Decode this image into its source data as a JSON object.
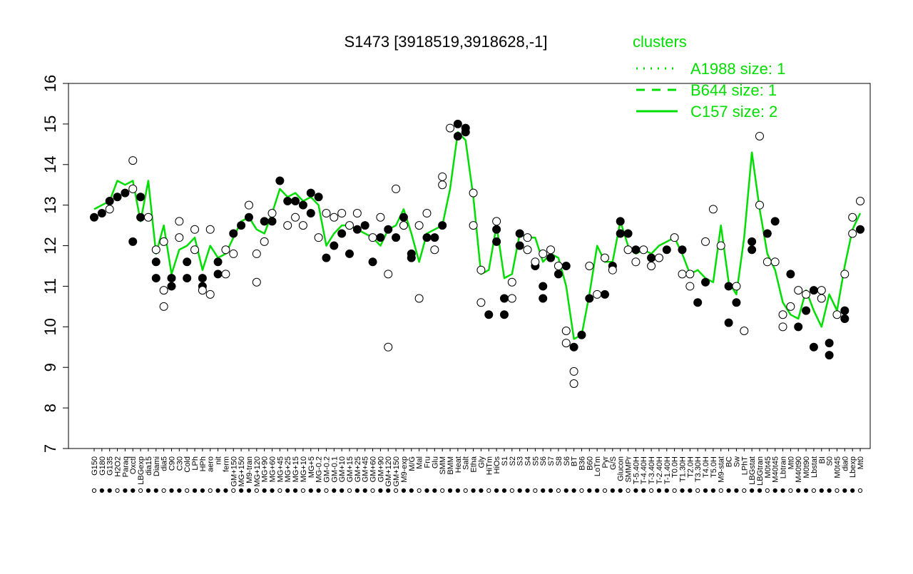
{
  "chart_data": {
    "type": "line",
    "title": "S1473 [3918519,3918628,-1]",
    "xlabel": "",
    "ylabel": "",
    "ylim": [
      7,
      16
    ],
    "y_ticks": [
      7,
      8,
      9,
      10,
      11,
      12,
      13,
      14,
      15,
      16
    ],
    "grid": false,
    "legend": {
      "title": "clusters",
      "placement": "top-right",
      "entries": [
        {
          "label": "A1988 size: 1",
          "style": "dotted"
        },
        {
          "label": "B644 size: 1",
          "style": "dashed"
        },
        {
          "label": "C157 size: 2",
          "style": "solid"
        }
      ]
    },
    "x_tick_labels": [
      "G150",
      "G180",
      "G135",
      "H2O2",
      "Paraq",
      "Oxctl",
      "LBGexp",
      "dia15",
      "Diami",
      "dia5",
      "C90",
      "C30",
      "Cold",
      "LPh",
      "HPh",
      "aero",
      "nit",
      "ferm",
      "GM+150",
      "MG+150",
      "M9-tran",
      "MG+120",
      "MG+90",
      "MG+60",
      "MG+45",
      "MG+25",
      "MG+15",
      "MG+10",
      "MG+5",
      "MG-0.2",
      "GM-0.2",
      "GM-0.1",
      "GM+10",
      "GM+15",
      "GM+25",
      "GM+45",
      "GM+60",
      "GM+90",
      "GM+120",
      "GM+150",
      "M9-exp",
      "M/G",
      "Mal",
      "Fru",
      "Glu",
      "SMM",
      "BMM",
      "Heat",
      "Salt",
      "Etha",
      "Gly",
      "HiTm",
      "HiOs",
      "S1",
      "S2",
      "S3",
      "S4",
      "S5",
      "S6",
      "S7",
      "S8",
      "S6",
      "BT",
      "B36",
      "B60",
      "LoTm",
      "Pyr",
      "G/S",
      "Glucon",
      "SMMPr",
      "T-5.40H",
      "T-4.40H",
      "T-3.40H",
      "T-2.40H",
      "T-1.40H",
      "T0.0H",
      "T1.30H",
      "T2.0H",
      "T3.30H",
      "T4.0H",
      "T5.0H",
      "M9-stat",
      "BC",
      "Sw",
      "LPhT",
      "LBGstat",
      "LBGtran",
      "M0t45",
      "M40t45",
      "Lbtran",
      "Mt0",
      "M40t90",
      "M0t90",
      "Lbstat",
      "BI",
      "S0",
      "M0t45",
      "dia0",
      "Lbexp",
      "Mt0"
    ],
    "series": [
      {
        "style": "solid",
        "color": "#00dd00",
        "x": [
          0,
          1,
          2,
          3,
          4,
          5,
          6,
          7,
          8,
          9,
          10,
          11,
          12,
          13,
          14,
          15,
          16,
          17,
          18,
          19,
          20,
          21,
          22,
          23,
          24,
          25,
          26,
          27,
          28,
          29,
          30,
          31,
          32,
          33,
          34,
          35,
          36,
          37,
          38,
          39,
          40,
          41,
          42,
          43,
          44,
          45,
          46,
          47,
          48,
          49,
          50,
          51,
          52,
          53,
          54,
          55,
          56,
          57,
          58,
          59,
          60,
          61,
          62,
          63,
          64,
          65,
          66,
          67,
          68,
          69,
          70,
          71,
          72,
          73,
          74,
          75,
          76,
          77,
          78,
          79,
          80,
          81,
          82,
          83,
          84,
          85,
          86,
          87,
          88,
          89,
          90,
          91,
          92,
          93,
          94,
          95,
          96,
          97,
          98,
          99
        ],
        "values": [
          12.9,
          13.0,
          13.1,
          13.6,
          13.5,
          13.6,
          12.6,
          13.6,
          11.8,
          12.5,
          11.3,
          11.9,
          12.0,
          12.2,
          11.4,
          12.0,
          11.7,
          11.8,
          12.2,
          12.6,
          12.7,
          12.4,
          12.3,
          12.8,
          13.4,
          13.2,
          13.3,
          13.1,
          13.2,
          13.0,
          12.0,
          12.3,
          12.5,
          12.5,
          12.4,
          12.3,
          12.2,
          12.0,
          12.4,
          12.5,
          12.9,
          12.3,
          11.6,
          12.3,
          12.4,
          12.5,
          13.4,
          14.8,
          14.6,
          13.2,
          11.3,
          11.4,
          12.5,
          11.2,
          11.3,
          12.3,
          12.2,
          12.2,
          11.6,
          11.8,
          11.7,
          11.0,
          9.7,
          9.8,
          10.8,
          12.0,
          11.6,
          11.6,
          12.6,
          12.0,
          11.8,
          11.9,
          11.8,
          12.0,
          12.1,
          12.2,
          11.8,
          11.3,
          11.4,
          11.2,
          11.1,
          12.5,
          11.1,
          10.8,
          12.2,
          14.3,
          12.9,
          11.8,
          11.4,
          10.6,
          10.3,
          10.2,
          10.9,
          10.4,
          10.0,
          10.8,
          10.4,
          11.5,
          12.4,
          12.8
        ]
      }
    ],
    "points": {
      "filled": [
        [
          0,
          12.7
        ],
        [
          1,
          12.8
        ],
        [
          2,
          13.1
        ],
        [
          3,
          13.2
        ],
        [
          4,
          13.3
        ],
        [
          5,
          12.1
        ],
        [
          6,
          12.7
        ],
        [
          6,
          13.2
        ],
        [
          8,
          11.6
        ],
        [
          8,
          11.2
        ],
        [
          10,
          11.2
        ],
        [
          10,
          11.0
        ],
        [
          12,
          11.6
        ],
        [
          12,
          11.2
        ],
        [
          14,
          11.2
        ],
        [
          14,
          11.0
        ],
        [
          16,
          11.3
        ],
        [
          16,
          11.6
        ],
        [
          18,
          12.3
        ],
        [
          19,
          12.5
        ],
        [
          20,
          12.7
        ],
        [
          22,
          12.6
        ],
        [
          23,
          12.6
        ],
        [
          24,
          13.6
        ],
        [
          25,
          13.1
        ],
        [
          26,
          13.1
        ],
        [
          27,
          13.0
        ],
        [
          28,
          12.8
        ],
        [
          28,
          13.3
        ],
        [
          29,
          13.2
        ],
        [
          30,
          11.7
        ],
        [
          31,
          12.0
        ],
        [
          32,
          12.3
        ],
        [
          33,
          11.8
        ],
        [
          34,
          12.4
        ],
        [
          35,
          12.5
        ],
        [
          36,
          11.6
        ],
        [
          37,
          12.2
        ],
        [
          38,
          12.4
        ],
        [
          39,
          12.2
        ],
        [
          40,
          12.7
        ],
        [
          41,
          11.7
        ],
        [
          41,
          11.8
        ],
        [
          43,
          12.2
        ],
        [
          44,
          12.2
        ],
        [
          45,
          12.5
        ],
        [
          47,
          14.7
        ],
        [
          47,
          15.0
        ],
        [
          48,
          14.8
        ],
        [
          48,
          14.9
        ],
        [
          51,
          10.3
        ],
        [
          52,
          12.1
        ],
        [
          52,
          12.4
        ],
        [
          53,
          10.7
        ],
        [
          53,
          10.3
        ],
        [
          55,
          12.0
        ],
        [
          55,
          12.3
        ],
        [
          57,
          11.5
        ],
        [
          58,
          11.0
        ],
        [
          58,
          10.7
        ],
        [
          59,
          11.7
        ],
        [
          60,
          11.3
        ],
        [
          61,
          11.5
        ],
        [
          62,
          9.5
        ],
        [
          63,
          9.8
        ],
        [
          64,
          10.7
        ],
        [
          66,
          10.8
        ],
        [
          67,
          11.5
        ],
        [
          68,
          12.6
        ],
        [
          68,
          12.3
        ],
        [
          69,
          12.3
        ],
        [
          70,
          11.9
        ],
        [
          72,
          11.7
        ],
        [
          74,
          11.9
        ],
        [
          76,
          11.9
        ],
        [
          78,
          10.6
        ],
        [
          79,
          11.1
        ],
        [
          82,
          11.0
        ],
        [
          82,
          10.1
        ],
        [
          83,
          10.6
        ],
        [
          85,
          11.9
        ],
        [
          85,
          12.1
        ],
        [
          87,
          12.3
        ],
        [
          88,
          12.6
        ],
        [
          90,
          11.3
        ],
        [
          91,
          10.0
        ],
        [
          92,
          10.4
        ],
        [
          93,
          9.5
        ],
        [
          93,
          10.9
        ],
        [
          95,
          9.6
        ],
        [
          95,
          9.3
        ],
        [
          97,
          10.4
        ],
        [
          97,
          10.2
        ],
        [
          99,
          12.4
        ]
      ],
      "open": [
        [
          2,
          12.9
        ],
        [
          5,
          14.1
        ],
        [
          5,
          13.4
        ],
        [
          7,
          12.7
        ],
        [
          8,
          11.9
        ],
        [
          9,
          12.1
        ],
        [
          9,
          10.9
        ],
        [
          9,
          10.5
        ],
        [
          11,
          12.6
        ],
        [
          11,
          12.2
        ],
        [
          13,
          12.4
        ],
        [
          13,
          11.9
        ],
        [
          14,
          10.9
        ],
        [
          15,
          10.8
        ],
        [
          15,
          12.4
        ],
        [
          17,
          11.9
        ],
        [
          17,
          11.3
        ],
        [
          18,
          11.8
        ],
        [
          20,
          13.0
        ],
        [
          21,
          11.8
        ],
        [
          21,
          11.1
        ],
        [
          22,
          12.1
        ],
        [
          23,
          12.8
        ],
        [
          25,
          12.5
        ],
        [
          26,
          12.7
        ],
        [
          27,
          12.5
        ],
        [
          29,
          12.2
        ],
        [
          30,
          12.8
        ],
        [
          31,
          12.7
        ],
        [
          32,
          12.8
        ],
        [
          33,
          12.5
        ],
        [
          34,
          12.8
        ],
        [
          36,
          12.2
        ],
        [
          37,
          12.7
        ],
        [
          38,
          9.5
        ],
        [
          38,
          11.3
        ],
        [
          39,
          13.4
        ],
        [
          40,
          12.5
        ],
        [
          42,
          12.5
        ],
        [
          42,
          10.7
        ],
        [
          43,
          12.8
        ],
        [
          44,
          11.9
        ],
        [
          45,
          13.5
        ],
        [
          45,
          13.7
        ],
        [
          46,
          14.9
        ],
        [
          49,
          13.3
        ],
        [
          49,
          12.5
        ],
        [
          50,
          11.4
        ],
        [
          50,
          10.6
        ],
        [
          52,
          12.6
        ],
        [
          54,
          11.1
        ],
        [
          54,
          10.7
        ],
        [
          56,
          12.2
        ],
        [
          56,
          11.9
        ],
        [
          57,
          11.6
        ],
        [
          58,
          11.8
        ],
        [
          59,
          11.9
        ],
        [
          60,
          11.5
        ],
        [
          61,
          9.9
        ],
        [
          61,
          9.6
        ],
        [
          62,
          8.9
        ],
        [
          62,
          8.6
        ],
        [
          64,
          11.5
        ],
        [
          65,
          10.8
        ],
        [
          66,
          11.7
        ],
        [
          67,
          11.4
        ],
        [
          69,
          11.9
        ],
        [
          70,
          11.6
        ],
        [
          71,
          11.9
        ],
        [
          72,
          11.5
        ],
        [
          73,
          11.7
        ],
        [
          75,
          12.2
        ],
        [
          76,
          11.3
        ],
        [
          77,
          11.0
        ],
        [
          77,
          11.3
        ],
        [
          79,
          12.1
        ],
        [
          80,
          12.9
        ],
        [
          81,
          12.0
        ],
        [
          83,
          11.0
        ],
        [
          84,
          9.9
        ],
        [
          86,
          14.7
        ],
        [
          86,
          13.0
        ],
        [
          87,
          11.6
        ],
        [
          88,
          11.6
        ],
        [
          89,
          10.3
        ],
        [
          89,
          10.0
        ],
        [
          90,
          10.5
        ],
        [
          91,
          10.9
        ],
        [
          92,
          10.8
        ],
        [
          94,
          10.9
        ],
        [
          94,
          10.7
        ],
        [
          96,
          10.3
        ],
        [
          97,
          11.3
        ],
        [
          98,
          12.3
        ],
        [
          98,
          12.7
        ],
        [
          99,
          13.1
        ]
      ]
    }
  }
}
